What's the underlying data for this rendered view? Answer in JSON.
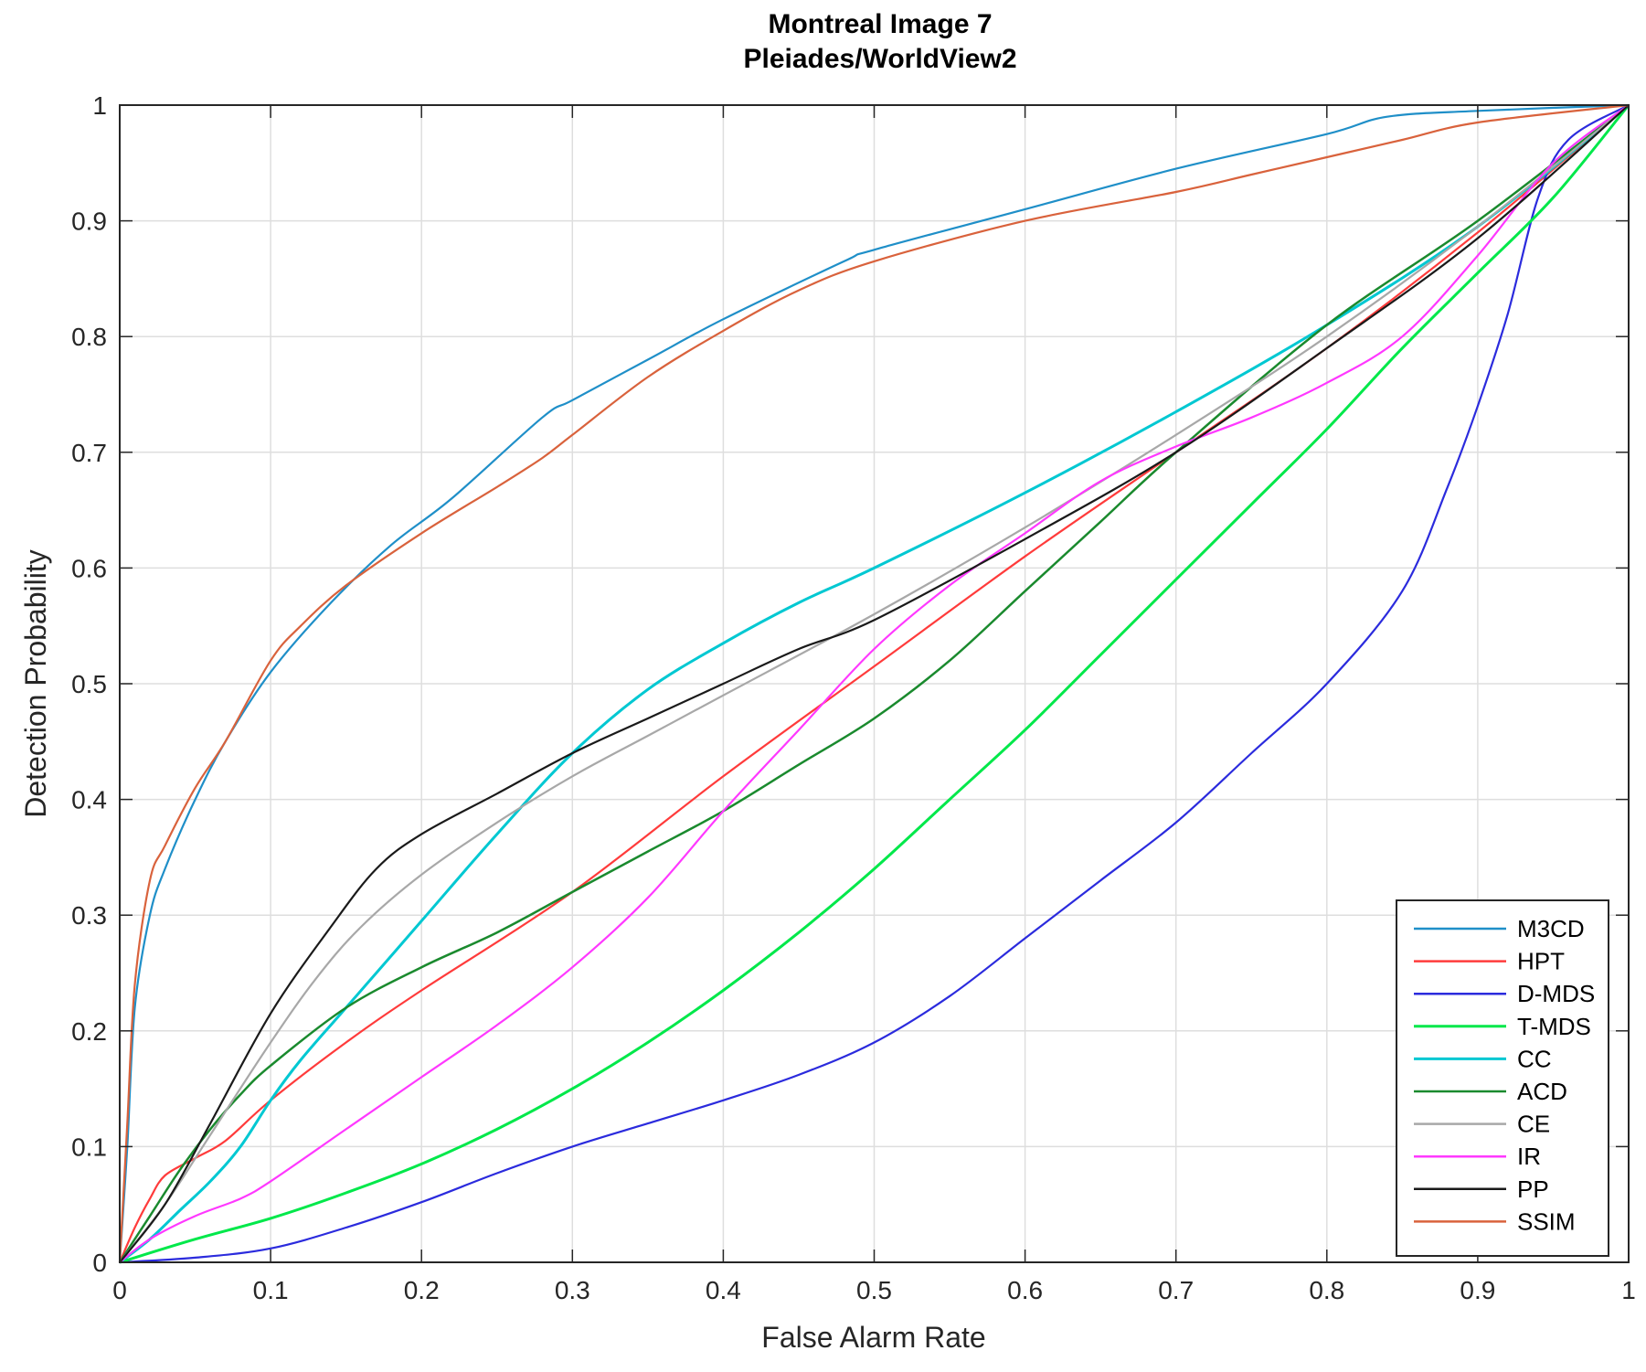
{
  "chart_data": {
    "type": "line",
    "title": "Montreal Image 7",
    "subtitle": "Pleiades/WorldView2",
    "xlabel": "False Alarm Rate",
    "ylabel": "Detection Probability",
    "xlim": [
      0,
      1
    ],
    "ylim": [
      0,
      1
    ],
    "xticks": [
      "0",
      "0.1",
      "0.2",
      "0.3",
      "0.4",
      "0.5",
      "0.6",
      "0.7",
      "0.8",
      "0.9",
      "1"
    ],
    "yticks": [
      "0",
      "0.1",
      "0.2",
      "0.3",
      "0.4",
      "0.5",
      "0.6",
      "0.7",
      "0.8",
      "0.9",
      "1"
    ],
    "grid": true,
    "legend_position": "bottom-right",
    "series": [
      {
        "name": "M3CD",
        "color": "#1f8fc8",
        "x": [
          0,
          0.005,
          0.01,
          0.02,
          0.03,
          0.05,
          0.07,
          0.1,
          0.14,
          0.18,
          0.22,
          0.28,
          0.3,
          0.35,
          0.4,
          0.48,
          0.5,
          0.6,
          0.7,
          0.8,
          0.84,
          0.9,
          1
        ],
        "y": [
          0,
          0.1,
          0.22,
          0.3,
          0.34,
          0.4,
          0.45,
          0.51,
          0.57,
          0.62,
          0.66,
          0.73,
          0.745,
          0.78,
          0.815,
          0.865,
          0.875,
          0.91,
          0.945,
          0.975,
          0.99,
          0.995,
          1
        ]
      },
      {
        "name": "HPT",
        "color": "#ff3b3b",
        "x": [
          0,
          0.01,
          0.02,
          0.03,
          0.05,
          0.07,
          0.1,
          0.15,
          0.2,
          0.3,
          0.4,
          0.5,
          0.6,
          0.7,
          0.8,
          0.9,
          1
        ],
        "y": [
          0,
          0.03,
          0.055,
          0.075,
          0.09,
          0.105,
          0.14,
          0.19,
          0.235,
          0.32,
          0.42,
          0.515,
          0.61,
          0.7,
          0.79,
          0.89,
          1
        ]
      },
      {
        "name": "D-MDS",
        "color": "#2b2bdd",
        "x": [
          0,
          0.05,
          0.1,
          0.15,
          0.2,
          0.25,
          0.3,
          0.35,
          0.4,
          0.45,
          0.5,
          0.55,
          0.6,
          0.65,
          0.7,
          0.75,
          0.8,
          0.85,
          0.88,
          0.9,
          0.92,
          0.94,
          0.96,
          1
        ],
        "y": [
          0,
          0.004,
          0.012,
          0.03,
          0.052,
          0.077,
          0.1,
          0.12,
          0.14,
          0.162,
          0.19,
          0.23,
          0.28,
          0.33,
          0.38,
          0.44,
          0.5,
          0.58,
          0.67,
          0.74,
          0.82,
          0.92,
          0.97,
          1
        ]
      },
      {
        "name": "T-MDS",
        "color": "#00e84a",
        "x": [
          0,
          0.05,
          0.1,
          0.15,
          0.2,
          0.25,
          0.3,
          0.35,
          0.4,
          0.45,
          0.5,
          0.55,
          0.6,
          0.65,
          0.7,
          0.75,
          0.8,
          0.85,
          0.9,
          0.95,
          1
        ],
        "y": [
          0,
          0.02,
          0.038,
          0.06,
          0.085,
          0.115,
          0.15,
          0.19,
          0.235,
          0.285,
          0.34,
          0.4,
          0.46,
          0.525,
          0.59,
          0.655,
          0.72,
          0.79,
          0.855,
          0.92,
          1
        ]
      },
      {
        "name": "CC",
        "color": "#00c8d2",
        "x": [
          0,
          0.02,
          0.04,
          0.06,
          0.08,
          0.1,
          0.12,
          0.15,
          0.2,
          0.25,
          0.3,
          0.35,
          0.4,
          0.45,
          0.5,
          0.6,
          0.7,
          0.8,
          0.9,
          1
        ],
        "y": [
          0,
          0.02,
          0.045,
          0.07,
          0.1,
          0.14,
          0.175,
          0.22,
          0.295,
          0.37,
          0.44,
          0.495,
          0.535,
          0.57,
          0.6,
          0.665,
          0.735,
          0.81,
          0.895,
          1
        ]
      },
      {
        "name": "ACD",
        "color": "#1a8a2e",
        "x": [
          0,
          0.02,
          0.04,
          0.06,
          0.08,
          0.1,
          0.15,
          0.2,
          0.25,
          0.3,
          0.35,
          0.4,
          0.45,
          0.5,
          0.55,
          0.6,
          0.65,
          0.7,
          0.8,
          0.9,
          1
        ],
        "y": [
          0,
          0.04,
          0.08,
          0.115,
          0.145,
          0.17,
          0.22,
          0.255,
          0.285,
          0.32,
          0.355,
          0.39,
          0.43,
          0.47,
          0.52,
          0.58,
          0.64,
          0.7,
          0.81,
          0.9,
          1
        ]
      },
      {
        "name": "CE",
        "color": "#a8a8a8",
        "x": [
          0,
          0.03,
          0.06,
          0.1,
          0.13,
          0.16,
          0.2,
          0.25,
          0.3,
          0.35,
          0.4,
          0.5,
          0.6,
          0.7,
          0.8,
          0.9,
          1
        ],
        "y": [
          0,
          0.05,
          0.11,
          0.19,
          0.245,
          0.29,
          0.335,
          0.38,
          0.42,
          0.455,
          0.49,
          0.56,
          0.635,
          0.715,
          0.8,
          0.895,
          1
        ]
      },
      {
        "name": "IR",
        "color": "#ff38ff",
        "x": [
          0,
          0.02,
          0.05,
          0.08,
          0.1,
          0.15,
          0.2,
          0.25,
          0.3,
          0.35,
          0.4,
          0.45,
          0.5,
          0.55,
          0.6,
          0.65,
          0.7,
          0.75,
          0.8,
          0.85,
          0.9,
          0.95,
          1
        ],
        "y": [
          0,
          0.02,
          0.04,
          0.055,
          0.07,
          0.115,
          0.16,
          0.205,
          0.255,
          0.315,
          0.39,
          0.46,
          0.53,
          0.585,
          0.63,
          0.675,
          0.705,
          0.73,
          0.76,
          0.8,
          0.87,
          0.95,
          1
        ]
      },
      {
        "name": "PP",
        "color": "#1a1a1a",
        "x": [
          0,
          0.03,
          0.06,
          0.1,
          0.14,
          0.17,
          0.2,
          0.25,
          0.3,
          0.35,
          0.4,
          0.45,
          0.5,
          0.6,
          0.7,
          0.8,
          0.9,
          1
        ],
        "y": [
          0,
          0.05,
          0.12,
          0.215,
          0.29,
          0.34,
          0.37,
          0.405,
          0.44,
          0.47,
          0.5,
          0.53,
          0.555,
          0.625,
          0.7,
          0.79,
          0.885,
          1
        ]
      },
      {
        "name": "SSIM",
        "color": "#d9623c",
        "x": [
          0,
          0.005,
          0.01,
          0.02,
          0.03,
          0.05,
          0.07,
          0.1,
          0.12,
          0.15,
          0.2,
          0.25,
          0.28,
          0.3,
          0.35,
          0.4,
          0.45,
          0.5,
          0.6,
          0.7,
          0.75,
          0.8,
          0.85,
          0.9,
          1
        ],
        "y": [
          0,
          0.12,
          0.24,
          0.33,
          0.36,
          0.41,
          0.45,
          0.52,
          0.55,
          0.585,
          0.63,
          0.67,
          0.695,
          0.715,
          0.765,
          0.805,
          0.84,
          0.865,
          0.9,
          0.925,
          0.94,
          0.955,
          0.97,
          0.985,
          1
        ]
      }
    ]
  }
}
